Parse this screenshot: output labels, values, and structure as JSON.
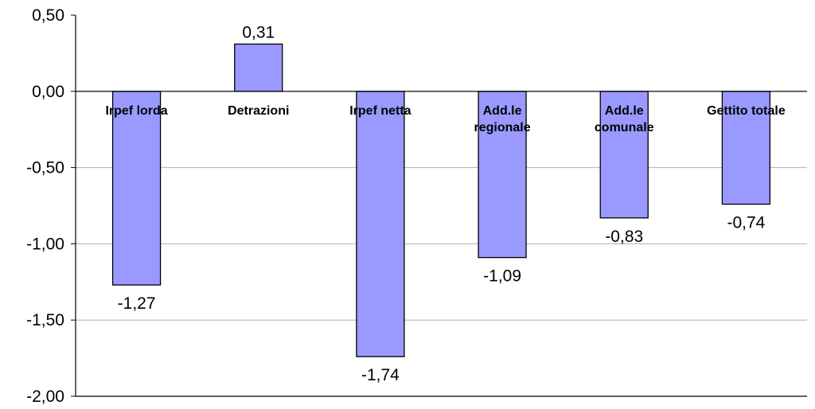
{
  "chart_data": {
    "type": "bar",
    "title": "",
    "xlabel": "",
    "ylabel": "",
    "categories": [
      [
        "Irpef lorda"
      ],
      [
        "Detrazioni"
      ],
      [
        "Irpef netta"
      ],
      [
        "Add.le",
        "regionale"
      ],
      [
        "Add.le",
        "comunale"
      ],
      [
        "Gettito totale"
      ]
    ],
    "values": [
      -1.27,
      0.31,
      -1.74,
      -1.09,
      -0.83,
      -0.74
    ],
    "value_labels": [
      "-1,27",
      "0,31",
      "-1,74",
      "-1,09",
      "-0,83",
      "-0,74"
    ],
    "ylim": [
      -2.0,
      0.5
    ],
    "yticks": [
      0.5,
      0.0,
      -0.5,
      -1.0,
      -1.5,
      -2.0
    ],
    "ytick_labels": [
      "0,50",
      "0,00",
      "-0,50",
      "-1,00",
      "-1,50",
      "-2,00"
    ],
    "grid": true,
    "legend": "none",
    "colors": {
      "bar_fill": "#9999ff",
      "bar_stroke": "#000000",
      "grid": "#b0b0b0",
      "axis": "#000000"
    }
  }
}
